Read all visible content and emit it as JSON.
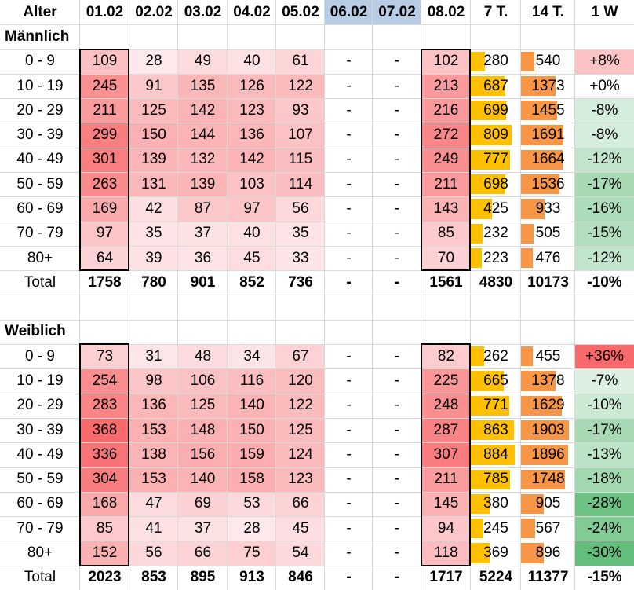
{
  "chart_data": {
    "type": "table",
    "columns": [
      "Alter",
      "01.02",
      "02.02",
      "03.02",
      "04.02",
      "05.02",
      "06.02",
      "07.02",
      "08.02",
      "7 T.",
      "14 T.",
      "1 W"
    ],
    "sections": [
      {
        "title": "Männlich",
        "rows": [
          {
            "label": "0 - 9",
            "values": [
              "109",
              "28",
              "49",
              "40",
              "61",
              "-",
              "-",
              "102",
              "280",
              "540",
              "+8%"
            ]
          },
          {
            "label": "10 - 19",
            "values": [
              "245",
              "91",
              "135",
              "126",
              "122",
              "-",
              "-",
              "213",
              "687",
              "1373",
              "+0%"
            ]
          },
          {
            "label": "20 - 29",
            "values": [
              "211",
              "125",
              "142",
              "123",
              "93",
              "-",
              "-",
              "216",
              "699",
              "1455",
              "-8%"
            ]
          },
          {
            "label": "30 - 39",
            "values": [
              "299",
              "150",
              "144",
              "136",
              "107",
              "-",
              "-",
              "272",
              "809",
              "1691",
              "-8%"
            ]
          },
          {
            "label": "40 - 49",
            "values": [
              "301",
              "139",
              "132",
              "142",
              "115",
              "-",
              "-",
              "249",
              "777",
              "1664",
              "-12%"
            ]
          },
          {
            "label": "50 - 59",
            "values": [
              "263",
              "131",
              "139",
              "103",
              "114",
              "-",
              "-",
              "211",
              "698",
              "1536",
              "-17%"
            ]
          },
          {
            "label": "60 - 69",
            "values": [
              "169",
              "42",
              "87",
              "97",
              "56",
              "-",
              "-",
              "143",
              "425",
              "933",
              "-16%"
            ]
          },
          {
            "label": "70 - 79",
            "values": [
              "97",
              "35",
              "37",
              "40",
              "35",
              "-",
              "-",
              "85",
              "232",
              "505",
              "-15%"
            ]
          },
          {
            "label": "80+",
            "values": [
              "64",
              "39",
              "36",
              "45",
              "33",
              "-",
              "-",
              "70",
              "223",
              "476",
              "-12%"
            ]
          }
        ],
        "total": {
          "label": "Total",
          "values": [
            "1758",
            "780",
            "901",
            "852",
            "736",
            "-",
            "-",
            "1561",
            "4830",
            "10173",
            "-10%"
          ]
        }
      },
      {
        "title": "Weiblich",
        "rows": [
          {
            "label": "0 - 9",
            "values": [
              "73",
              "31",
              "48",
              "34",
              "67",
              "-",
              "-",
              "82",
              "262",
              "455",
              "+36%"
            ]
          },
          {
            "label": "10 - 19",
            "values": [
              "254",
              "98",
              "106",
              "116",
              "120",
              "-",
              "-",
              "225",
              "665",
              "1378",
              "-7%"
            ]
          },
          {
            "label": "20 - 29",
            "values": [
              "283",
              "136",
              "125",
              "140",
              "122",
              "-",
              "-",
              "248",
              "771",
              "1629",
              "-10%"
            ]
          },
          {
            "label": "30 - 39",
            "values": [
              "368",
              "153",
              "148",
              "150",
              "125",
              "-",
              "-",
              "287",
              "863",
              "1903",
              "-17%"
            ]
          },
          {
            "label": "40 - 49",
            "values": [
              "336",
              "138",
              "156",
              "159",
              "124",
              "-",
              "-",
              "307",
              "884",
              "1896",
              "-13%"
            ]
          },
          {
            "label": "50 - 59",
            "values": [
              "304",
              "153",
              "140",
              "158",
              "123",
              "-",
              "-",
              "211",
              "785",
              "1748",
              "-18%"
            ]
          },
          {
            "label": "60 - 69",
            "values": [
              "168",
              "47",
              "69",
              "53",
              "66",
              "-",
              "-",
              "145",
              "380",
              "905",
              "-28%"
            ]
          },
          {
            "label": "70 - 79",
            "values": [
              "85",
              "41",
              "37",
              "28",
              "45",
              "-",
              "-",
              "94",
              "245",
              "567",
              "-24%"
            ]
          },
          {
            "label": "80+",
            "values": [
              "152",
              "56",
              "66",
              "75",
              "54",
              "-",
              "-",
              "118",
              "369",
              "896",
              "-30%"
            ]
          }
        ],
        "total": {
          "label": "Total",
          "values": [
            "2023",
            "853",
            "895",
            "913",
            "846",
            "-",
            "-",
            "1717",
            "5224",
            "11377",
            "-15%"
          ]
        }
      }
    ],
    "highlighted_columns": [
      "06.02",
      "07.02"
    ],
    "outlined_columns": [
      "01.02",
      "08.02"
    ],
    "colors": {
      "header_highlight": "#b8cce4",
      "heat_high": "#f8696b",
      "heat_low": "#fde9eb",
      "bar_7t": "#ffc000",
      "bar_14t": "#f79646",
      "change_up": "#f8696b",
      "change_down": "#63be7b",
      "grid": "#d9d9d9"
    }
  }
}
